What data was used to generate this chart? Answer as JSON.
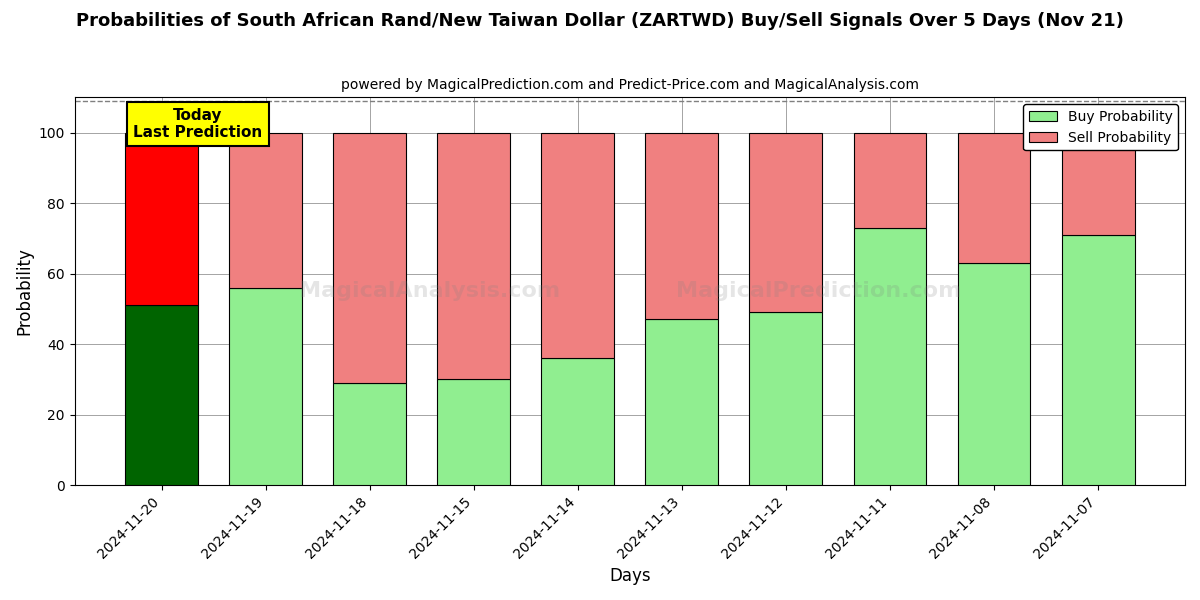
{
  "title": "Probabilities of South African Rand/New Taiwan Dollar (ZARTWD) Buy/Sell Signals Over 5 Days (Nov 21)",
  "subtitle": "powered by MagicalPrediction.com and Predict-Price.com and MagicalAnalysis.com",
  "xlabel": "Days",
  "ylabel": "Probability",
  "categories": [
    "2024-11-20",
    "2024-11-19",
    "2024-11-18",
    "2024-11-15",
    "2024-11-14",
    "2024-11-13",
    "2024-11-12",
    "2024-11-11",
    "2024-11-08",
    "2024-11-07"
  ],
  "buy_values": [
    51,
    56,
    29,
    30,
    36,
    47,
    49,
    73,
    63,
    71
  ],
  "sell_values": [
    49,
    44,
    71,
    70,
    64,
    53,
    51,
    27,
    37,
    29
  ],
  "buy_color_today": "#006400",
  "sell_color_today": "#FF0000",
  "buy_color_other": "#90EE90",
  "sell_color_other": "#F08080",
  "bar_edge_color": "#000000",
  "ylim": [
    0,
    110
  ],
  "yticks": [
    0,
    20,
    40,
    60,
    80,
    100
  ],
  "dashed_line_y": 109,
  "annotation_text": "Today\nLast Prediction",
  "annotation_bg": "#FFFF00",
  "legend_buy_label": "Buy Probability",
  "legend_sell_label": "Sell Probability",
  "today_index": 0,
  "figsize": [
    12.0,
    6.0
  ],
  "dpi": 100
}
